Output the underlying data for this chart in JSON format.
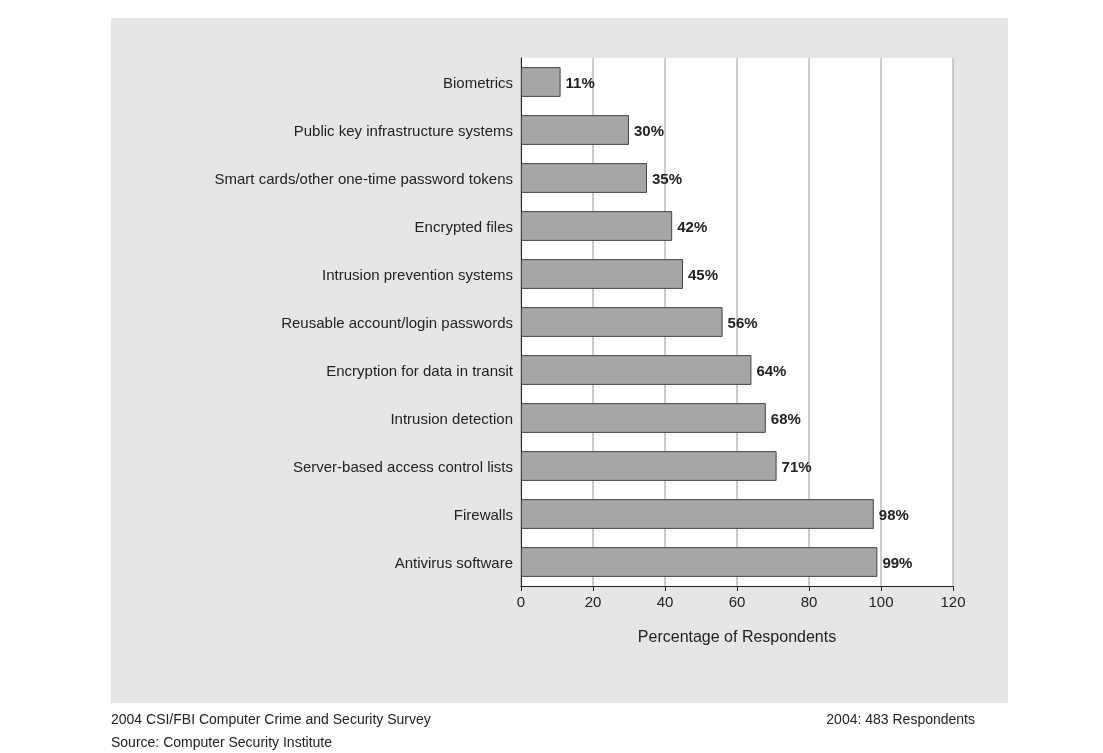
{
  "chart_data": {
    "type": "bar",
    "orientation": "horizontal",
    "xlabel": "Percentage of Respondents",
    "categories": [
      "Biometrics",
      "Public key infrastructure systems",
      "Smart cards/other one-time password tokens",
      "Encrypted files",
      "Intrusion prevention systems",
      "Reusable account/login passwords",
      "Encryption for data in transit",
      "Intrusion detection",
      "Server-based access control lists",
      "Firewalls",
      "Antivirus software"
    ],
    "values": [
      11,
      30,
      35,
      42,
      45,
      56,
      64,
      68,
      71,
      98,
      99
    ],
    "value_labels": [
      "11%",
      "30%",
      "35%",
      "42%",
      "45%",
      "56%",
      "64%",
      "68%",
      "71%",
      "98%",
      "99%"
    ],
    "color": "#a6a6a6",
    "xlim": [
      0,
      120
    ],
    "xticks": [
      0,
      20,
      40,
      60,
      80,
      100,
      120
    ],
    "grid": "x",
    "annotations": [
      "2004 CSI/FBI Computer Crime and Security Survey",
      "Source: Computer Security Institute",
      "2004: 483 Respondents"
    ]
  }
}
